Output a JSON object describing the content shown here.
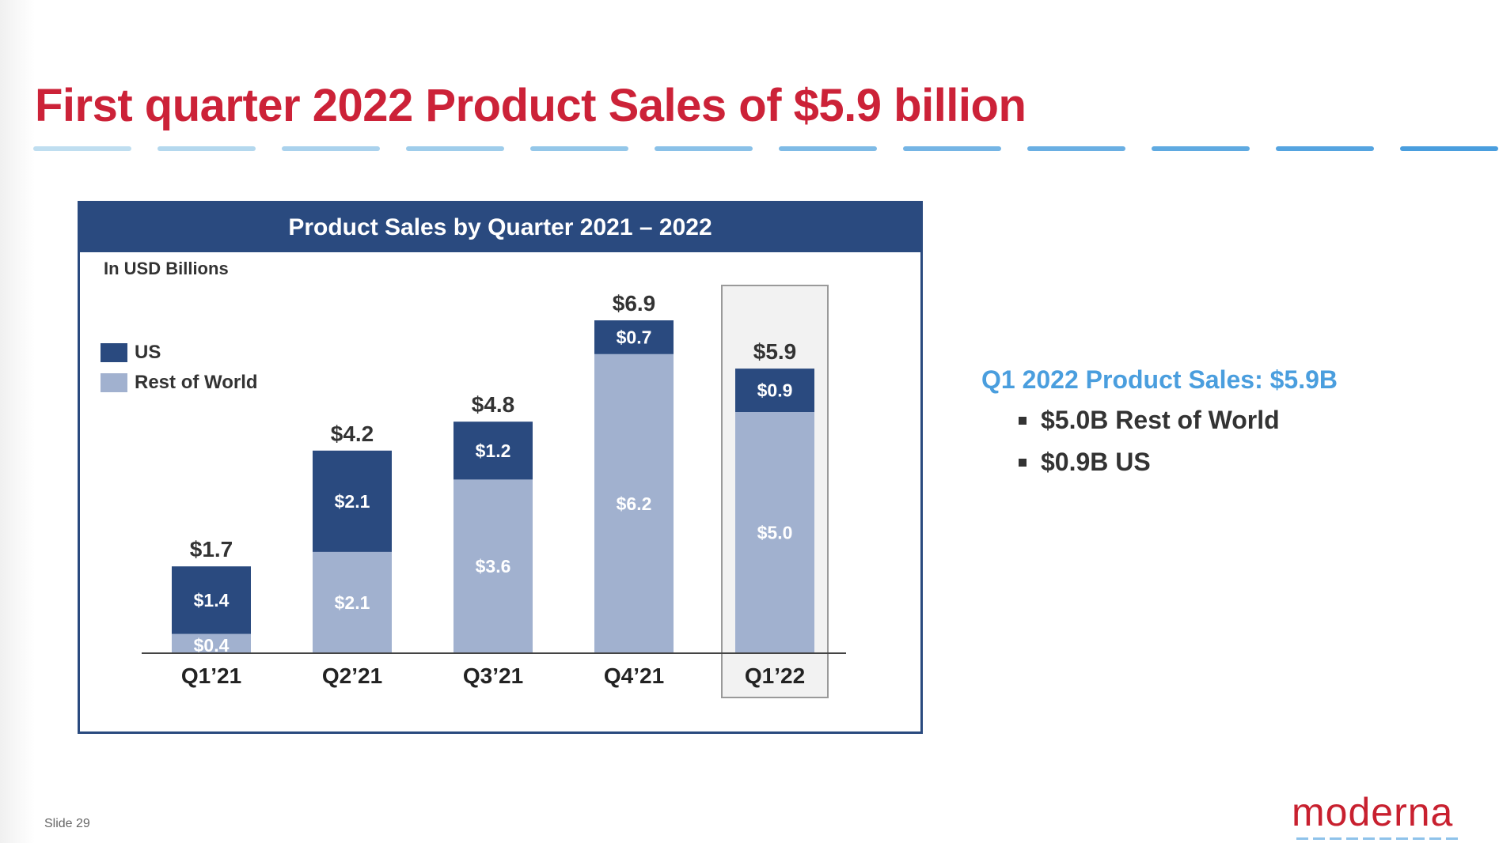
{
  "slide": {
    "title": "First quarter 2022 Product Sales of $5.9 billion",
    "slide_number": "Slide 29",
    "logo_text": "moderna",
    "colors": {
      "title_red": "#cc2238",
      "header_navy": "#2a4a7f",
      "accent_blue": "#4a9ede"
    }
  },
  "summary": {
    "title": "Q1 2022 Product Sales: $5.9B",
    "items": [
      "$5.0B Rest of World",
      "$0.9B US"
    ]
  },
  "chart_data": {
    "type": "bar",
    "stacked": true,
    "title": "Product Sales by Quarter 2021 – 2022",
    "units_label": "In USD Billions",
    "categories": [
      "Q1’21",
      "Q2’21",
      "Q3’21",
      "Q4’21",
      "Q1’22"
    ],
    "series": [
      {
        "name": "US",
        "color": "#2a4a7f",
        "values": [
          1.4,
          2.1,
          1.2,
          0.7,
          0.9
        ],
        "labels": [
          "$1.4",
          "$2.1",
          "$1.2",
          "$0.7",
          "$0.9"
        ]
      },
      {
        "name": "Rest of World",
        "color": "#a1b1cf",
        "values": [
          0.4,
          2.1,
          3.6,
          6.2,
          5.0
        ],
        "labels": [
          "$0.4",
          "$2.1",
          "$3.6",
          "$6.2",
          "$5.0"
        ]
      }
    ],
    "totals": [
      1.7,
      4.2,
      4.8,
      6.9,
      5.9
    ],
    "total_labels": [
      "$1.7",
      "$4.2",
      "$4.8",
      "$6.9",
      "$5.9"
    ],
    "highlighted_category": "Q1’22",
    "ylim": [
      0,
      7.5
    ],
    "grid": false,
    "legend_position": "top-left"
  }
}
